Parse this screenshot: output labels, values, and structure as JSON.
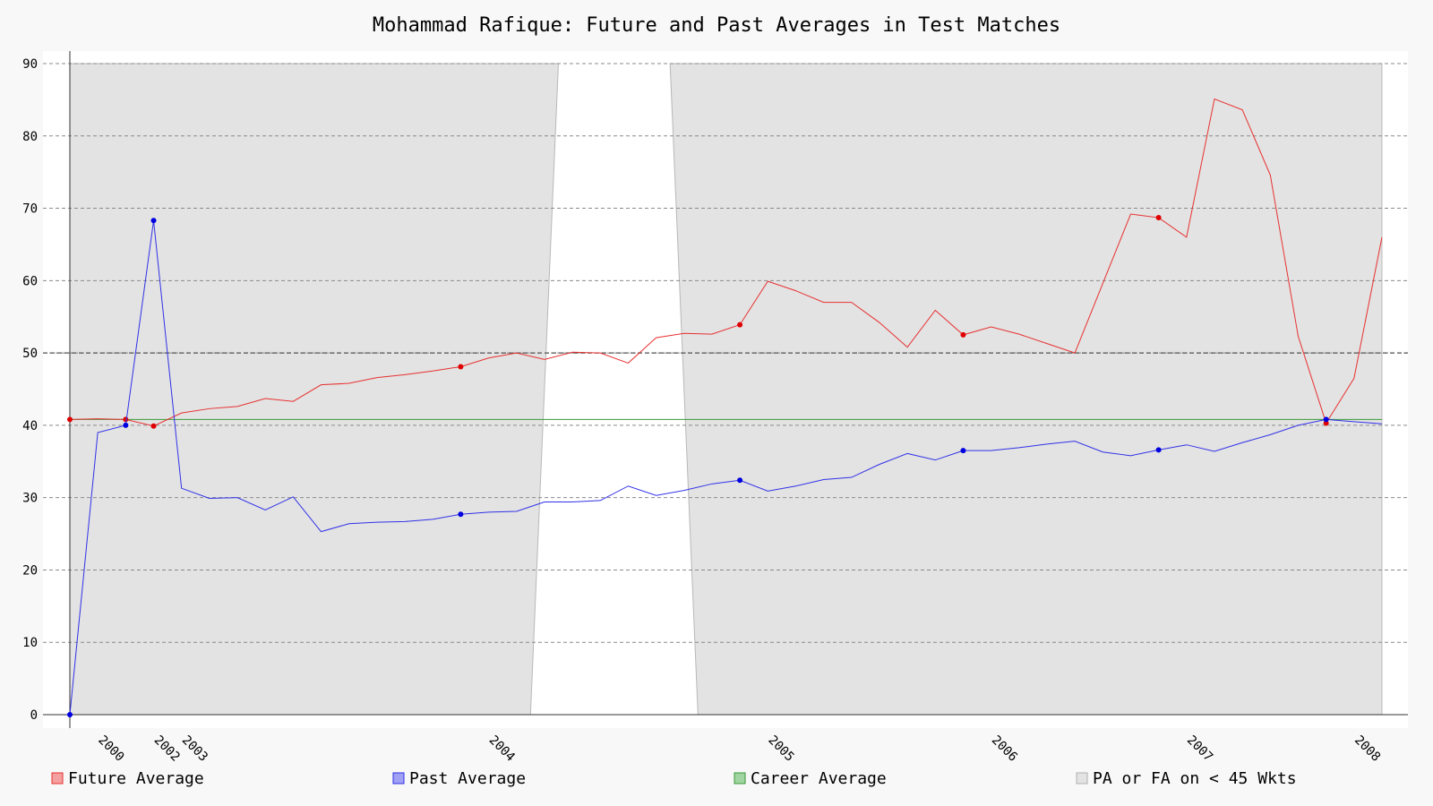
{
  "chart_data": {
    "type": "line",
    "title": "Mohammad Rafique: Future and Past Averages in Test Matches",
    "xlabel": "",
    "ylabel": "",
    "ylim": [
      0,
      90
    ],
    "yticks": [
      0,
      10,
      20,
      30,
      40,
      50,
      60,
      70,
      80,
      90
    ],
    "grid": true,
    "legend_position": "bottom",
    "x_tick_labels": [
      "2000",
      "2002",
      "2003",
      "2004",
      "2005",
      "2006",
      "2007",
      "2008"
    ],
    "x_tick_positions": [
      1,
      3,
      4,
      15,
      25,
      33,
      40,
      46
    ],
    "x_index_count": 48,
    "series": [
      {
        "name": "Future Average",
        "color": "#e83030",
        "values": [
          40.8,
          40.9,
          40.8,
          39.9,
          41.7,
          42.3,
          42.6,
          43.7,
          43.3,
          45.6,
          45.8,
          46.6,
          47.0,
          47.5,
          48.1,
          49.3,
          50.0,
          49.1,
          50.1,
          50.0,
          48.6,
          52.1,
          52.7,
          52.6,
          53.9,
          59.9,
          58.6,
          57.0,
          57.0,
          54.2,
          50.8,
          55.9,
          52.5,
          53.6,
          52.6,
          51.3,
          50.0,
          59.6,
          69.2,
          68.7,
          66.0,
          85.1,
          83.6,
          74.6,
          52.3,
          40.3,
          46.5,
          66.0
        ]
      },
      {
        "name": "Past Average",
        "color": "#3030e8",
        "values": [
          0.0,
          39.0,
          40.0,
          68.3,
          31.3,
          29.9,
          30.0,
          28.3,
          30.1,
          25.3,
          26.4,
          26.6,
          26.7,
          27.0,
          27.7,
          28.0,
          28.1,
          29.4,
          29.4,
          29.6,
          31.6,
          30.3,
          31.0,
          31.9,
          32.4,
          30.9,
          31.6,
          32.5,
          32.8,
          34.6,
          36.1,
          35.2,
          36.5,
          36.5,
          36.9,
          37.4,
          37.8,
          36.3,
          35.8,
          36.6,
          37.3,
          36.4,
          37.6,
          38.7,
          40.0,
          40.8,
          40.5,
          40.2
        ]
      },
      {
        "name": "Career Average",
        "color": "#3a9a3a",
        "values": [
          40.8,
          40.8
        ]
      }
    ],
    "marker_indices": [
      0,
      2,
      3,
      14,
      24,
      32,
      39,
      45
    ],
    "shaded_regions": {
      "name": "PA or FA on < 45 Wkts",
      "color": "#e3e3e3",
      "unshaded_interval_bottom": [
        16.5,
        22.5
      ],
      "unshaded_interval_top": [
        17.5,
        21.5
      ]
    },
    "reference_line": 50,
    "legend": [
      {
        "label": "Future Average",
        "color": "#e83030",
        "fill": "#f4a0a0"
      },
      {
        "label": "Past Average",
        "color": "#3030e8",
        "fill": "#a0a0f4"
      },
      {
        "label": "Career Average",
        "color": "#3a9a3a",
        "fill": "#a0d4a0"
      },
      {
        "label": "PA or FA on < 45 Wkts",
        "color": "#b0b0b0",
        "fill": "#e3e3e3"
      }
    ]
  }
}
